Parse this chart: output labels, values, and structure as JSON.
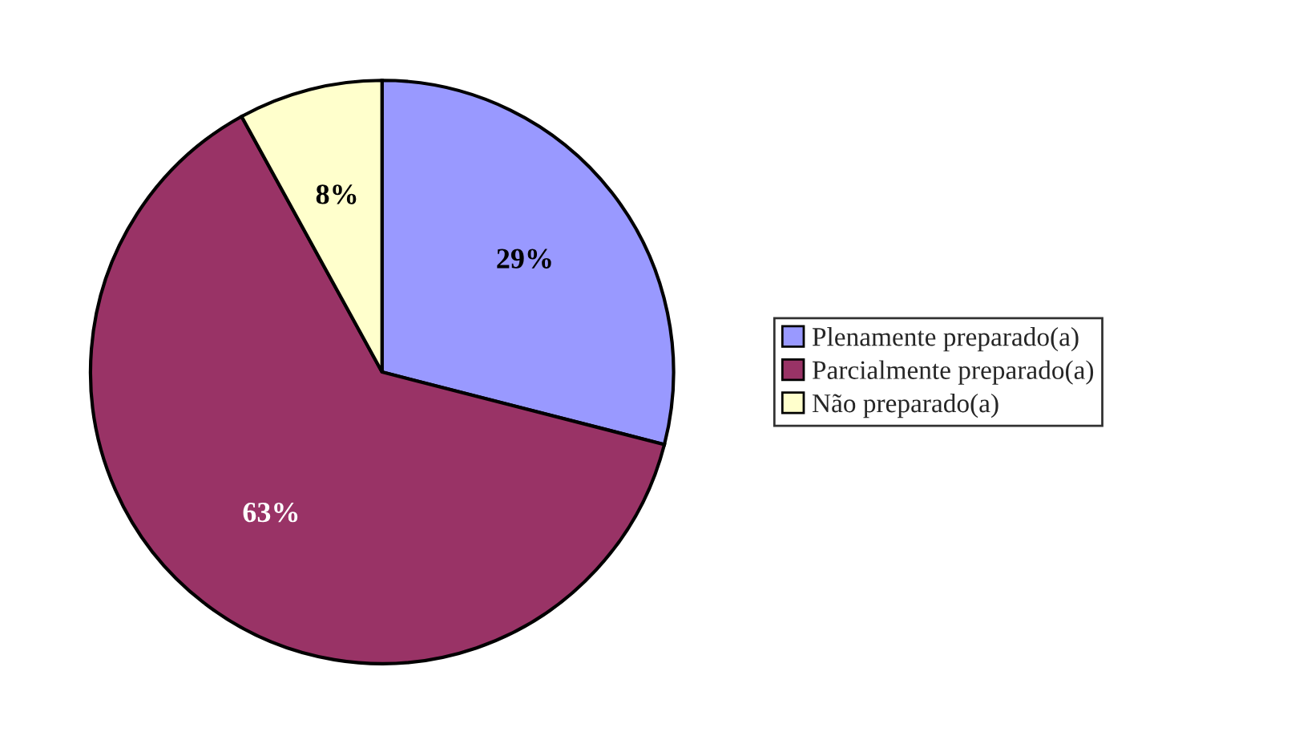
{
  "chart_data": {
    "type": "pie",
    "categories": [
      "Plenamente preparado(a)",
      "Parcialmente preparado(a)",
      "Não preparado(a)"
    ],
    "values": [
      29,
      63,
      8
    ],
    "colors": [
      "#9999ff",
      "#993366",
      "#ffffcc"
    ],
    "value_labels": [
      "29%",
      "63%",
      "8%"
    ],
    "legend": "right"
  }
}
